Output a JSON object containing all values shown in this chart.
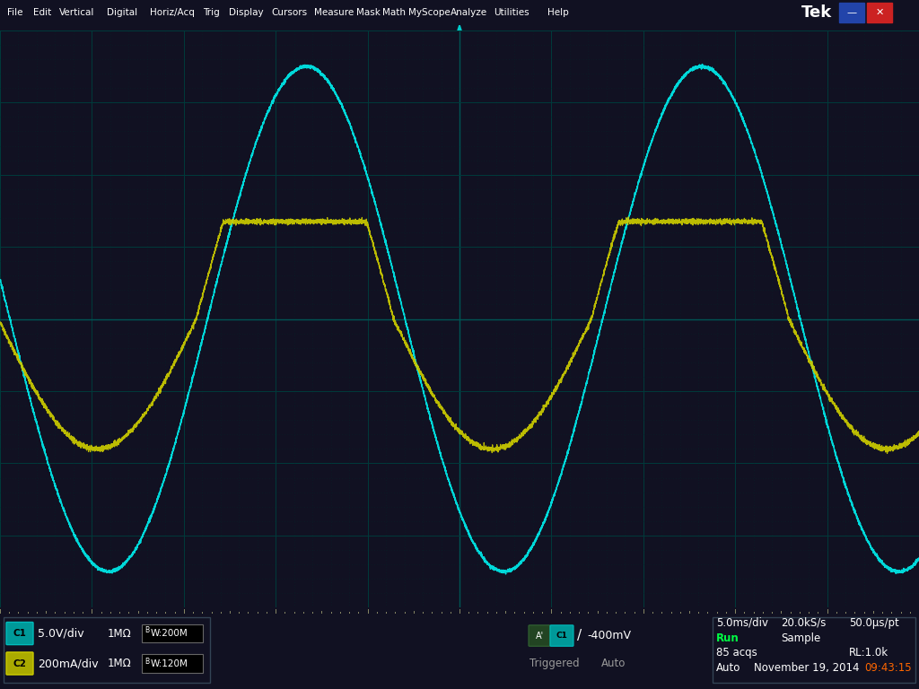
{
  "bg_color": "#000000",
  "frame_color": "#1a1a2e",
  "menu_bar_color": "#1e3a6e",
  "status_bar_color": "#111122",
  "grid_color": "#003333",
  "grid_major_color": "#004444",
  "ch1_color": "#00e5e5",
  "ch2_color": "#cccc00",
  "oscilloscope_bg": "#000000",
  "num_hdiv": 10,
  "num_vdiv": 8,
  "ch1_scale": "5.0V/div",
  "ch2_scale": "200mA/div",
  "time_scale": "5.0ms/div",
  "sample_rate": "20.0kS/s",
  "sample_pt": "50.0μs/pt",
  "trigger_level": "-400mV",
  "acqs": "85 acqs",
  "rl": "RL:1.0k",
  "date": "November 19, 2014",
  "time_str": "09:43:15",
  "menu_items": [
    "File",
    "Edit",
    "Vertical",
    "Digital",
    "Horiz/Acq",
    "Trig",
    "Display",
    "Cursors",
    "Measure",
    "Mask",
    "Math",
    "MyScope",
    "Analyze",
    "Utilities",
    "Help"
  ],
  "ch1_impedance": "1MΩ",
  "ch2_impedance": "1MΩ",
  "ch1_bw": "BW:200M",
  "ch2_bw": "BW:120M"
}
